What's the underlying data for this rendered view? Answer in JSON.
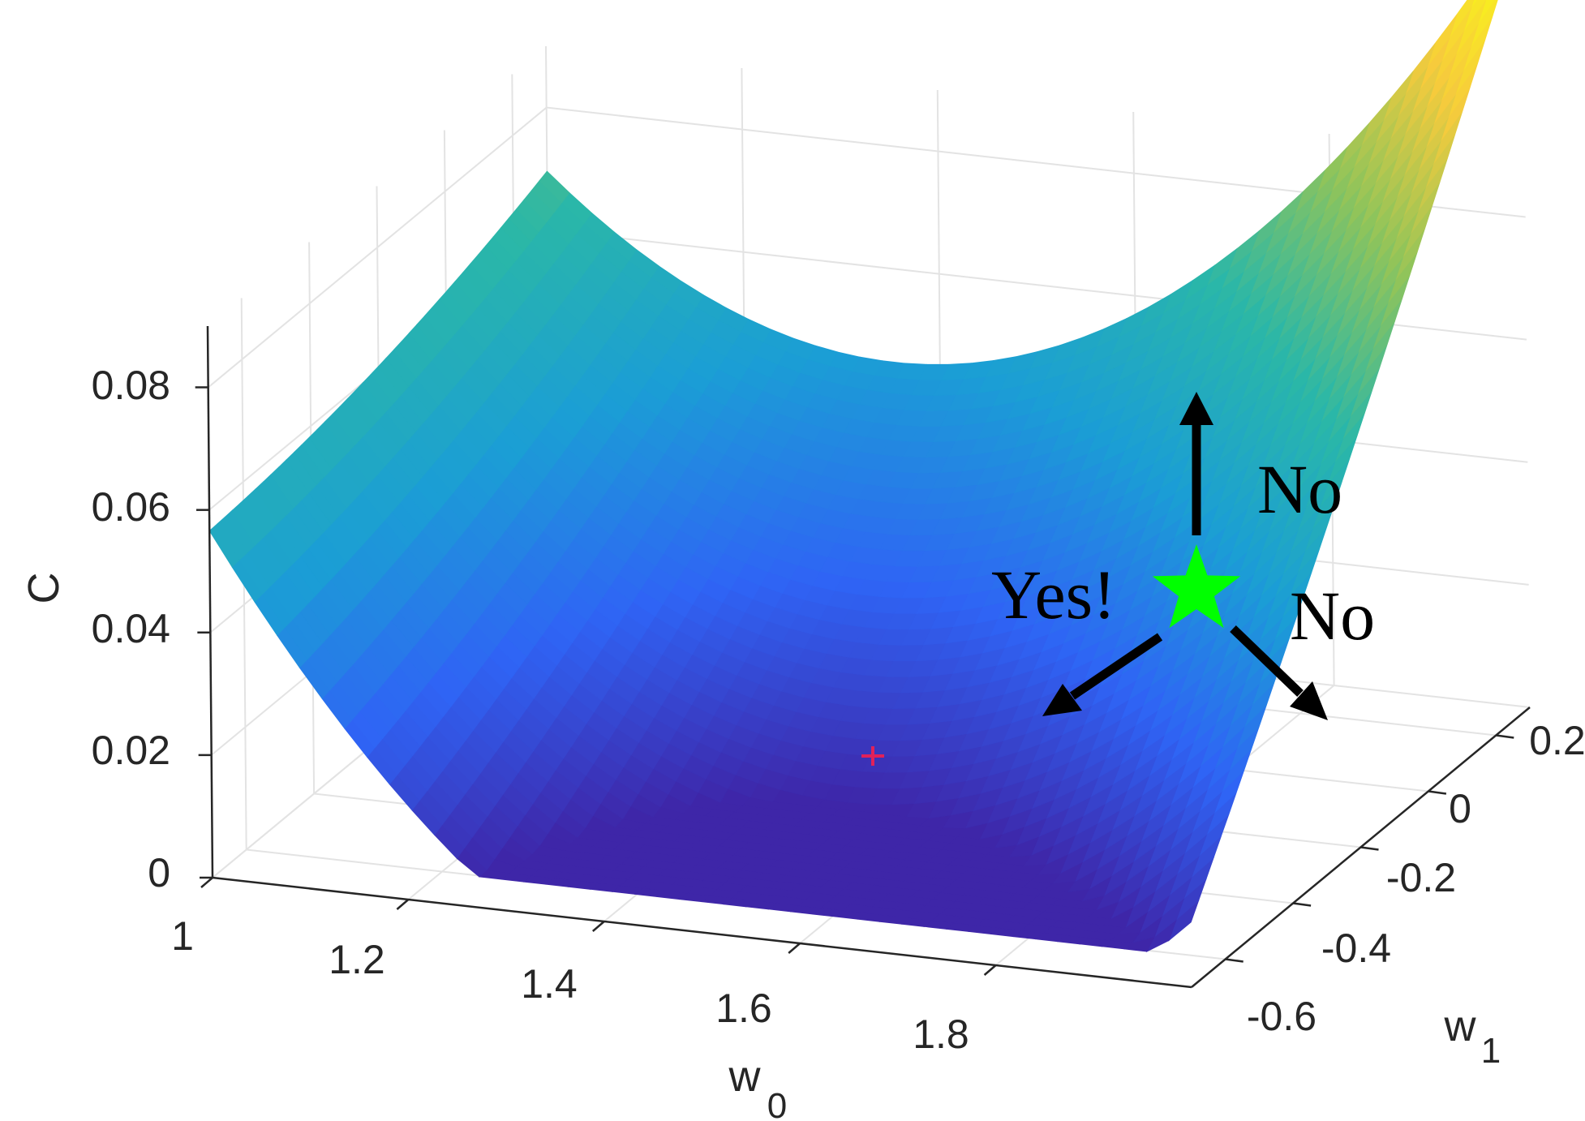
{
  "chart_data": {
    "type": "surface",
    "title": "",
    "xlabel": "w",
    "xlabel_sub": "0",
    "ylabel": "w",
    "ylabel_sub": "1",
    "zlabel": "C",
    "xlim": [
      1,
      2
    ],
    "ylim": [
      -0.7,
      0.3
    ],
    "zlim": [
      0,
      0.09
    ],
    "x_ticks": [
      "1",
      "1.2",
      "1.4",
      "1.6",
      "1.8"
    ],
    "y_ticks": [
      "-0.6",
      "-0.4",
      "-0.2",
      "0",
      "0.2"
    ],
    "z_ticks": [
      "0",
      "0.02",
      "0.04",
      "0.06",
      "0.08"
    ],
    "colormap": [
      "#3e26a8",
      "#2f64f5",
      "#1b9ed5",
      "#2ab7a8",
      "#90c45a",
      "#f7cb3c",
      "#f9fb15"
    ],
    "surface": {
      "corners": [
        {
          "w0": 1,
          "w1": -0.7,
          "C": 0.055
        },
        {
          "w0": 1,
          "w1": 0.3,
          "C": 0.066
        },
        {
          "w0": 2,
          "w1": 0.3,
          "C": 0.125
        },
        {
          "w0": 2,
          "w1": -0.7,
          "C": 0.009
        }
      ],
      "minimum": {
        "w0": 1.6,
        "w1": -0.3,
        "C": 0.005
      }
    },
    "annotations": {
      "marker_color": "#00ff00",
      "minimum_marker_color": "#e0215a",
      "arrows": [
        "up",
        "down-left",
        "down-right"
      ],
      "labels": {
        "up": "No",
        "right": "No",
        "left": "Yes!"
      }
    },
    "grid": true
  }
}
